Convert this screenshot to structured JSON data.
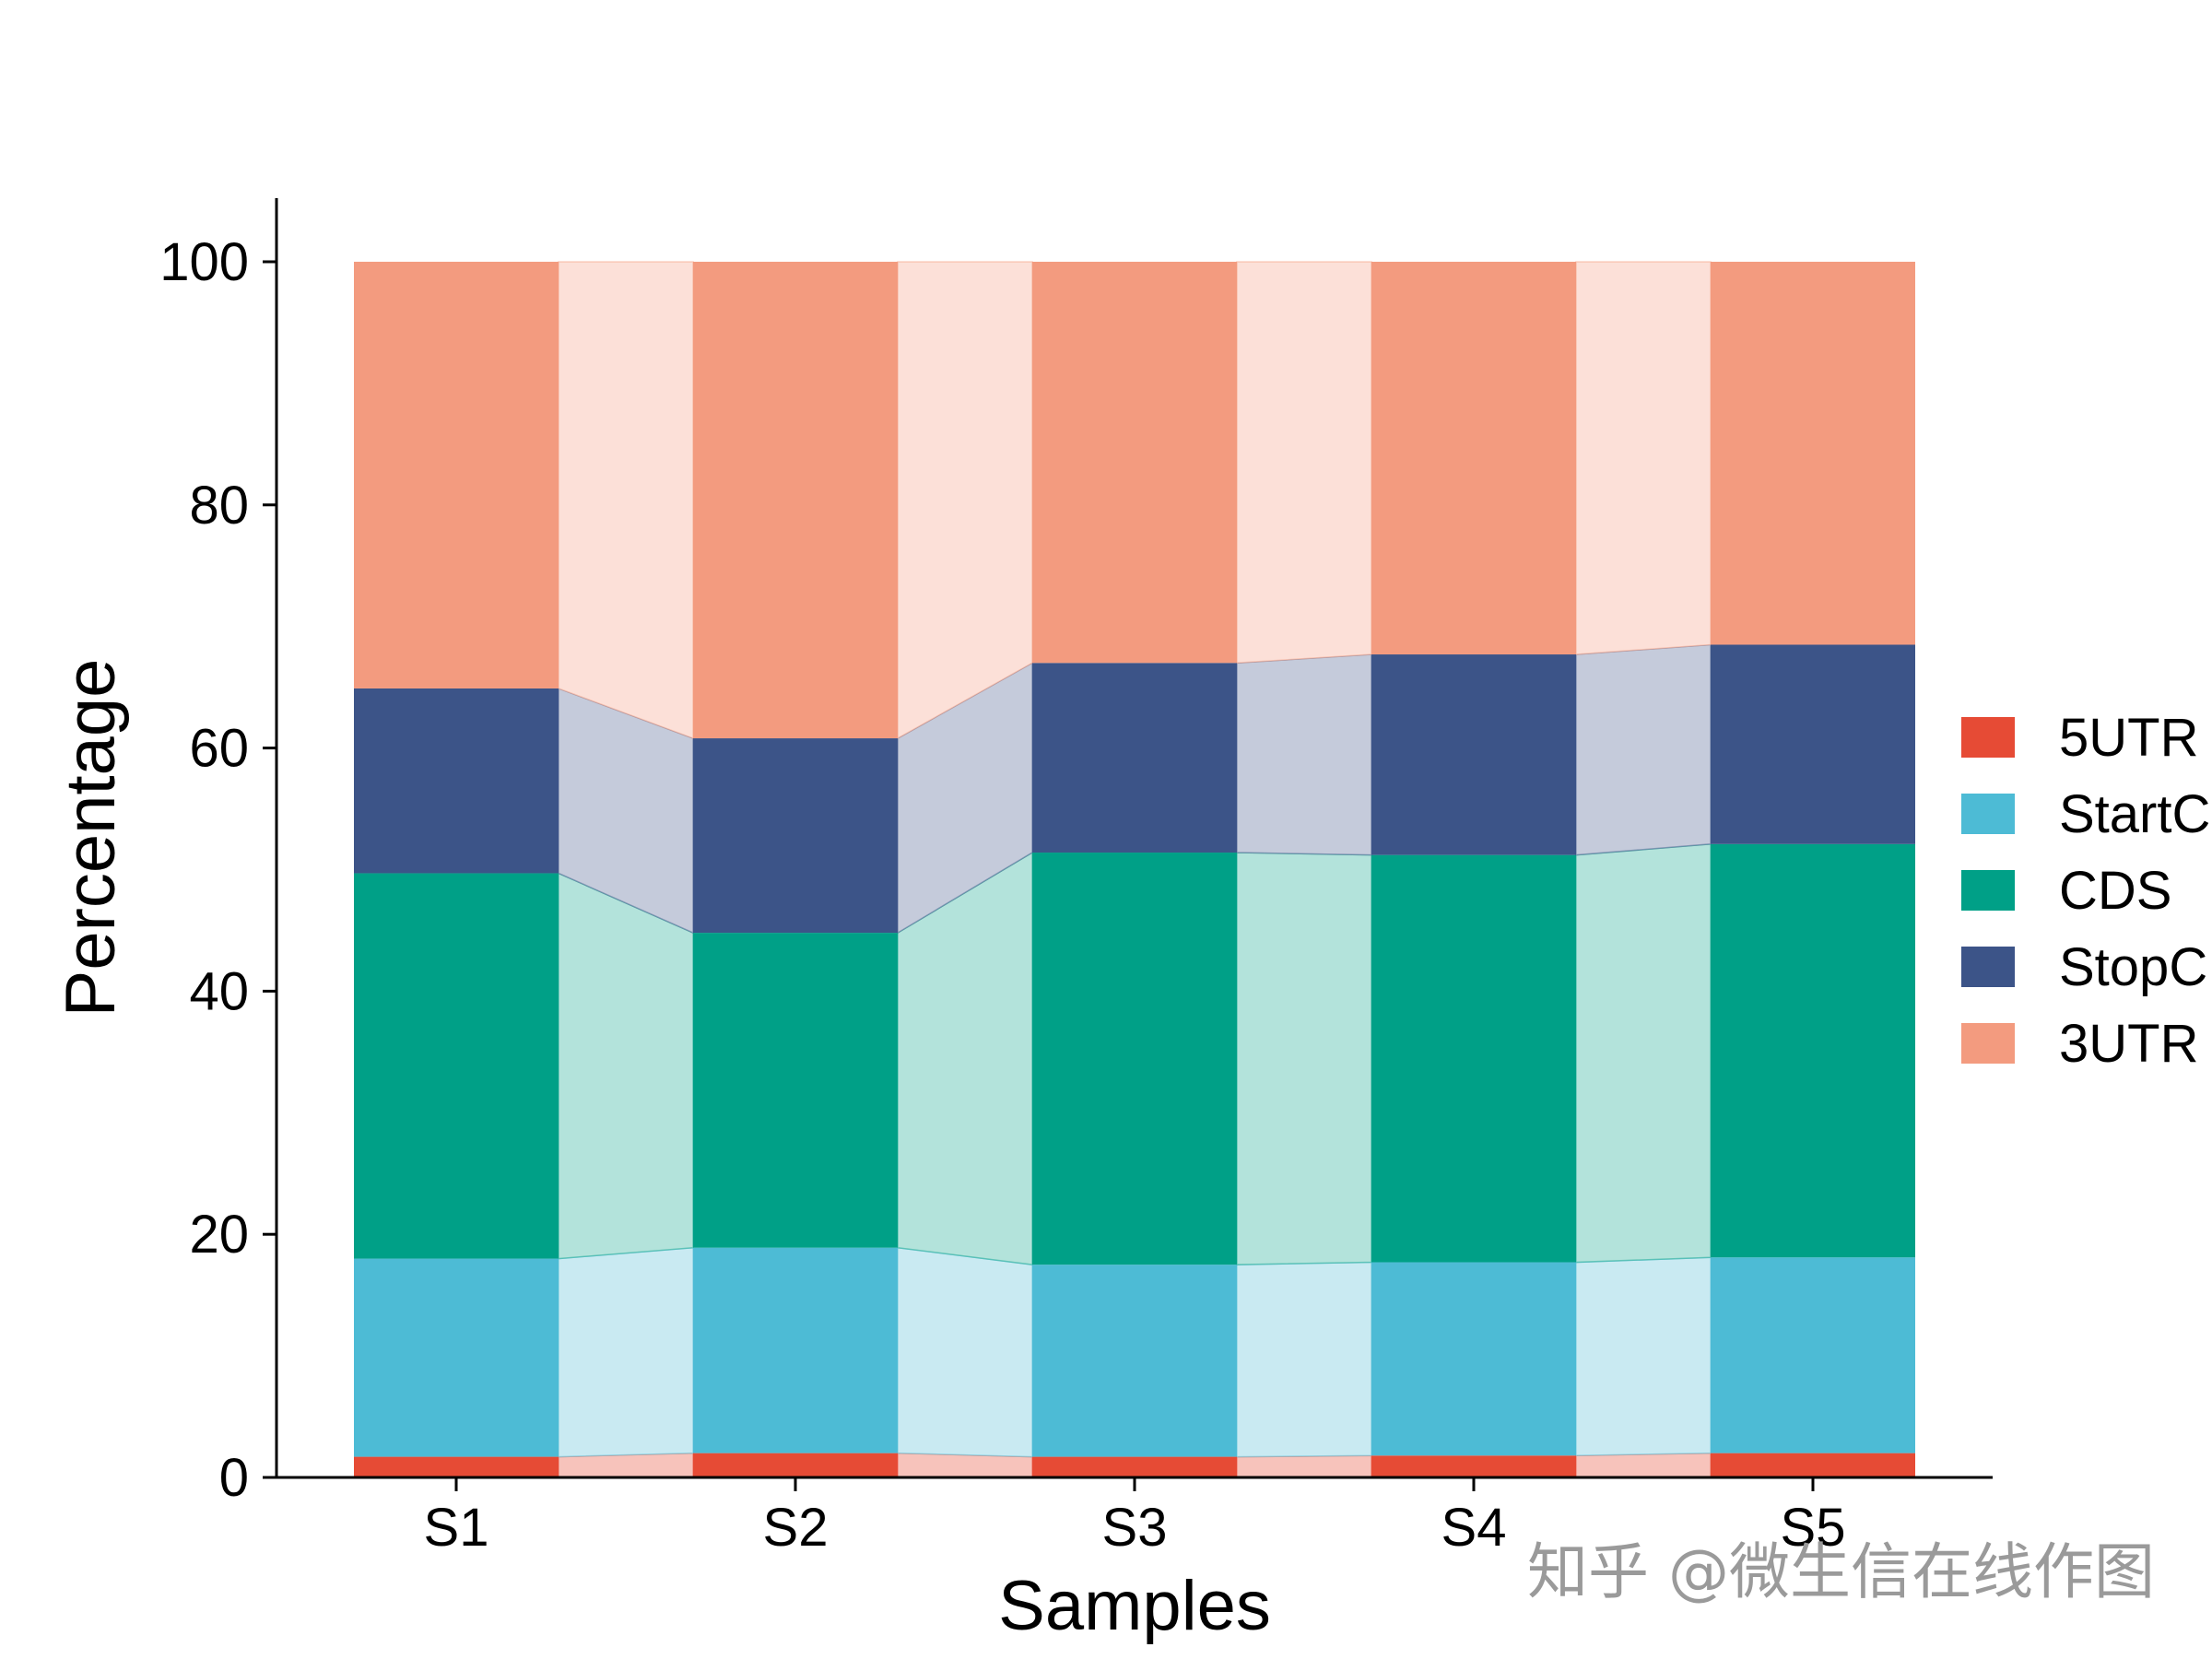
{
  "chart_data": {
    "type": "bar",
    "stacked": true,
    "connector_fill": true,
    "title": "",
    "xlabel": "Samples",
    "ylabel": "Percentage",
    "ylim": [
      0,
      105
    ],
    "yticks": [
      0,
      20,
      40,
      60,
      80,
      100
    ],
    "categories": [
      "S1",
      "S2",
      "S3",
      "S4",
      "S5"
    ],
    "series": [
      {
        "name": "5UTR",
        "color": "#E64B35",
        "light": "#F7C3BB",
        "values": [
          1.7,
          2.0,
          1.7,
          1.8,
          2.0
        ]
      },
      {
        "name": "StartC",
        "color": "#4DBBD5",
        "light": "#C9EAF2",
        "values": [
          16.3,
          16.9,
          15.8,
          15.9,
          16.1
        ]
      },
      {
        "name": "CDS",
        "color": "#00A087",
        "light": "#B3E3DB",
        "values": [
          31.7,
          25.9,
          33.9,
          33.5,
          34.0
        ]
      },
      {
        "name": "StopC",
        "color": "#3C5488",
        "light": "#C5CBDB",
        "values": [
          15.2,
          16.0,
          15.6,
          16.5,
          16.4
        ]
      },
      {
        "name": "3UTR",
        "color": "#F39B7F",
        "light": "#FCE0D8",
        "values": [
          35.1,
          39.2,
          33.0,
          32.3,
          31.5
        ]
      }
    ],
    "legend_position": "right"
  },
  "watermark": "知乎 @微生信在线作图"
}
